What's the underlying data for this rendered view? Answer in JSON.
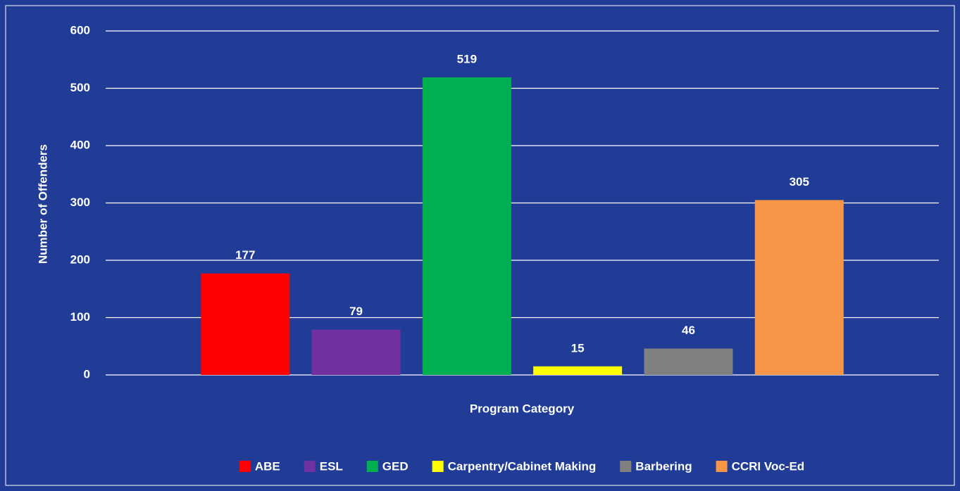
{
  "chart_data": {
    "type": "bar",
    "y_label": "Number of Offenders",
    "x_label": "Program Category",
    "categories": [
      null
    ],
    "series": [
      {
        "name": "ABE",
        "color": "#ff0000",
        "values": [
          177
        ]
      },
      {
        "name": "ESL",
        "color": "#7030a0",
        "values": [
          79
        ]
      },
      {
        "name": "GED",
        "color": "#00b050",
        "values": [
          519
        ]
      },
      {
        "name": "Carpentry/Cabinet Making",
        "color": "#ffff00",
        "values": [
          15
        ]
      },
      {
        "name": "Barbering",
        "color": "#808080",
        "values": [
          46
        ]
      },
      {
        "name": "CCRI Voc-Ed",
        "color": "#f79646",
        "values": [
          305
        ]
      }
    ],
    "ylim": [
      0,
      600
    ],
    "yticks": [
      0,
      100,
      200,
      300,
      400,
      500,
      600
    ],
    "grid": true,
    "legend": "bottom"
  }
}
